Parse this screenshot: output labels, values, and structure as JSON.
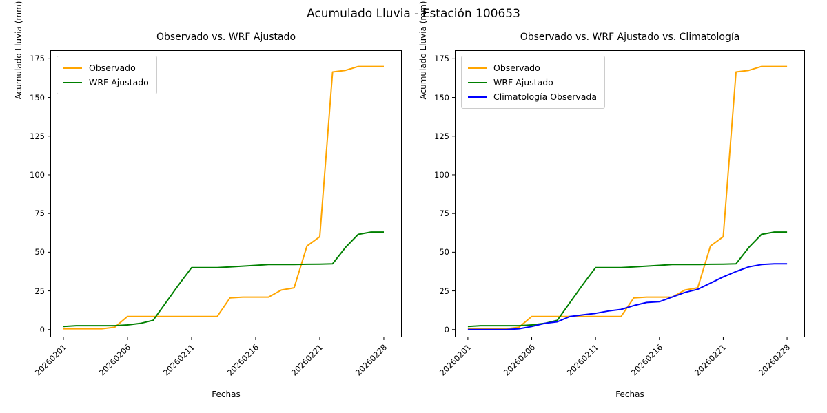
{
  "title": "Acumulado Lluvia - Estación 100653",
  "colors": {
    "observado": "#FFA500",
    "wrf_ajustado": "#008000",
    "climatologia": "#0000FF",
    "axis": "#000000",
    "legend_border": "#CCCCCC",
    "text": "#000000",
    "background": "#FFFFFF"
  },
  "chart_data": [
    {
      "type": "line",
      "title": "Observado vs. WRF Ajustado",
      "xlabel": "Fechas",
      "ylabel": "Acumulado Lluvia (mm)",
      "grid": false,
      "legend_position": "upper left",
      "x_tick_positions": [
        0,
        5,
        10,
        15,
        20,
        25
      ],
      "x_tick_labels": [
        "20260201",
        "20260206",
        "20260211",
        "20260216",
        "20260221",
        "20260228"
      ],
      "y_ticks": [
        0,
        25,
        50,
        75,
        100,
        125,
        150,
        175
      ],
      "ylim": [
        -5,
        180.5
      ],
      "xlim": [
        -1.02,
        26.4
      ],
      "series": [
        {
          "name": "Observado",
          "color": "#FFA500",
          "values": [
            0.5,
            0.5,
            0.5,
            0.5,
            1.5,
            8.5,
            8.5,
            8.5,
            8.5,
            8.5,
            8.5,
            8.5,
            8.5,
            20.5,
            21,
            21,
            21,
            25.5,
            27,
            54,
            60,
            166.5,
            167.5,
            170,
            170,
            170
          ]
        },
        {
          "name": "WRF Ajustado",
          "color": "#008000",
          "values": [
            2,
            2.5,
            2.5,
            2.5,
            2.5,
            3,
            4,
            6,
            17.5,
            29,
            40,
            40,
            40,
            40.5,
            41,
            41.5,
            42,
            42,
            42,
            42.2,
            42.3,
            42.5,
            53,
            61.5,
            63,
            63
          ]
        }
      ]
    },
    {
      "type": "line",
      "title": "Observado vs. WRF Ajustado vs. Climatología",
      "xlabel": "Fechas",
      "ylabel": "Acumulado Lluvia (mm)",
      "grid": false,
      "legend_position": "upper left",
      "x_tick_positions": [
        0,
        5,
        10,
        15,
        20,
        25
      ],
      "x_tick_labels": [
        "20260201",
        "20260206",
        "20260211",
        "20260216",
        "20260221",
        "20260228"
      ],
      "y_ticks": [
        0,
        25,
        50,
        75,
        100,
        125,
        150,
        175
      ],
      "ylim": [
        -5,
        180.5
      ],
      "xlim": [
        -1.02,
        26.4
      ],
      "series": [
        {
          "name": "Observado",
          "color": "#FFA500",
          "values": [
            0.5,
            0.5,
            0.5,
            0.5,
            1.5,
            8.5,
            8.5,
            8.5,
            8.5,
            8.5,
            8.5,
            8.5,
            8.5,
            20.5,
            21,
            21,
            21,
            25.5,
            27,
            54,
            60,
            166.5,
            167.5,
            170,
            170,
            170
          ]
        },
        {
          "name": "WRF Ajustado",
          "color": "#008000",
          "values": [
            2,
            2.5,
            2.5,
            2.5,
            2.5,
            3,
            4,
            6,
            17.5,
            29,
            40,
            40,
            40,
            40.5,
            41,
            41.5,
            42,
            42,
            42,
            42.2,
            42.3,
            42.5,
            53,
            61.5,
            63,
            63
          ]
        },
        {
          "name": "Climatología Observada",
          "color": "#0000FF",
          "values": [
            0,
            0,
            0,
            0,
            0.5,
            2,
            4,
            5,
            8.5,
            9.5,
            10.5,
            12,
            13,
            15.5,
            17.5,
            18,
            21,
            24,
            26,
            30,
            34,
            37.5,
            40.5,
            42,
            42.5,
            42.5
          ]
        }
      ]
    }
  ]
}
